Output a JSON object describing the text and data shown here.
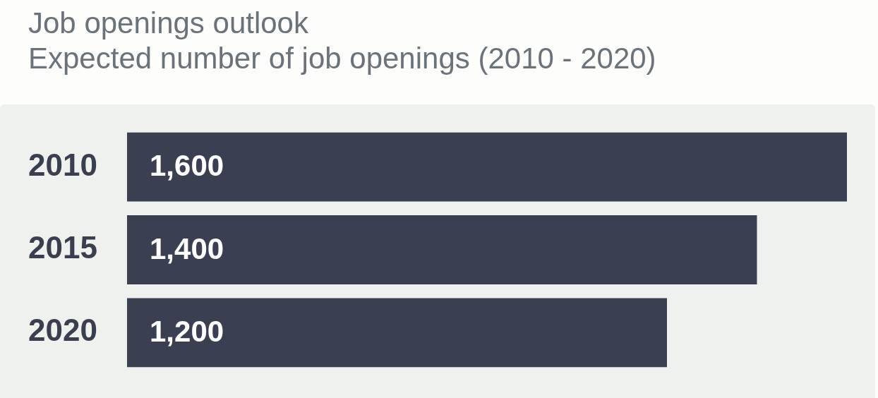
{
  "chart_data": {
    "type": "bar",
    "orientation": "horizontal",
    "title": "Job openings outlook",
    "subtitle": "Expected number of job openings (2010 - 2020)",
    "categories": [
      "2010",
      "2015",
      "2020"
    ],
    "values": [
      1600,
      1400,
      1200
    ],
    "value_labels": [
      "1,600",
      "1,400",
      "1,200"
    ],
    "color": "#3a4052",
    "xlim": [
      0,
      1600
    ],
    "tick_labels": "y"
  }
}
